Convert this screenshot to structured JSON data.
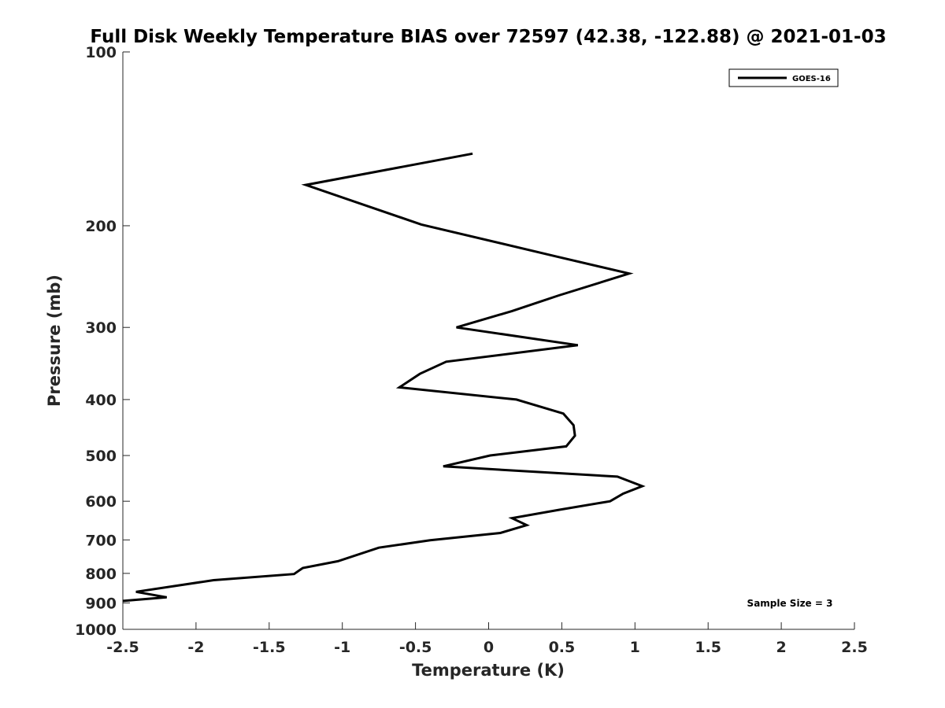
{
  "chart_data": {
    "type": "line",
    "title": "Full Disk Weekly Temperature BIAS over 72597 (42.38, -122.88) @ 2021-01-03",
    "xlabel": "Temperature (K)",
    "ylabel": "Pressure (mb)",
    "xlim": [
      -2.5,
      2.5
    ],
    "ylim": [
      100,
      1000
    ],
    "yscale": "log",
    "yreversed": true,
    "grid": false,
    "legend_position": "top-right",
    "x_ticks": [
      "-2.5",
      "-2",
      "-1.5",
      "-1",
      "-0.5",
      "0",
      "0.5",
      "1",
      "1.5",
      "2",
      "2.5"
    ],
    "y_ticks": [
      "100",
      "200",
      "300",
      "400",
      "500",
      "600",
      "700",
      "800",
      "900",
      "1000"
    ],
    "annotation": "Sample Size = 3",
    "series": [
      {
        "name": "GOES-16",
        "color": "#000000",
        "points": [
          [
            -0.11,
            150
          ],
          [
            -1.25,
            170
          ],
          [
            -0.46,
            199
          ],
          [
            0.46,
            226
          ],
          [
            0.96,
            242
          ],
          [
            0.48,
            264
          ],
          [
            0.16,
            281
          ],
          [
            -0.22,
            300
          ],
          [
            0.61,
            322
          ],
          [
            -0.29,
            344
          ],
          [
            -0.47,
            361
          ],
          [
            -0.61,
            381
          ],
          [
            0.19,
            400
          ],
          [
            0.51,
            423
          ],
          [
            0.58,
            443
          ],
          [
            0.59,
            462
          ],
          [
            0.53,
            482
          ],
          [
            0.01,
            500
          ],
          [
            -0.31,
            522
          ],
          [
            0.88,
            544
          ],
          [
            1.05,
            565
          ],
          [
            0.92,
            582
          ],
          [
            0.83,
            600
          ],
          [
            0.48,
            621
          ],
          [
            0.16,
            642
          ],
          [
            0.26,
            660
          ],
          [
            0.08,
            681
          ],
          [
            -0.4,
            701
          ],
          [
            -0.75,
            722
          ],
          [
            -1.03,
            762
          ],
          [
            -1.27,
            783
          ],
          [
            -1.33,
            802
          ],
          [
            -1.88,
            822
          ],
          [
            -2.41,
            861
          ],
          [
            -2.2,
            880
          ],
          [
            -2.5,
            893
          ]
        ]
      }
    ]
  }
}
